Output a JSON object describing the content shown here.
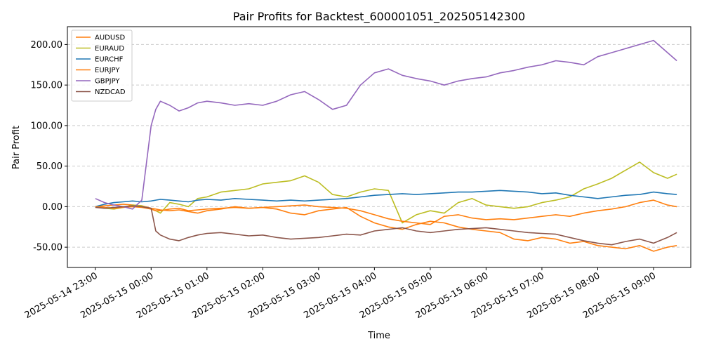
{
  "chart_data": {
    "type": "line",
    "title": "Pair Profits for Backtest_600001051_202505142300",
    "xlabel": "Time",
    "ylabel": "Pair Profit",
    "x_ticks": [
      "2025-05-14 23:00",
      "2025-05-15 00:00",
      "2025-05-15 01:00",
      "2025-05-15 02:00",
      "2025-05-15 03:00",
      "2025-05-15 04:00",
      "2025-05-15 05:00",
      "2025-05-15 06:00",
      "2025-05-15 07:00",
      "2025-05-15 08:00",
      "2025-05-15 09:00"
    ],
    "x_range": [
      "2025-05-14 22:30",
      "2025-05-15 09:40"
    ],
    "y_ticks": [
      "-50.00",
      "0.00",
      "50.00",
      "100.00",
      "150.00",
      "200.00"
    ],
    "ylim": [
      -75,
      222
    ],
    "grid": "y-dashed",
    "legend_position": "top-left",
    "x": [
      "2025-05-14 23:00",
      "2025-05-14 23:10",
      "2025-05-14 23:20",
      "2025-05-14 23:30",
      "2025-05-14 23:40",
      "2025-05-14 23:50",
      "2025-05-15 00:00",
      "2025-05-15 00:05",
      "2025-05-15 00:10",
      "2025-05-15 00:20",
      "2025-05-15 00:30",
      "2025-05-15 00:40",
      "2025-05-15 00:50",
      "2025-05-15 01:00",
      "2025-05-15 01:15",
      "2025-05-15 01:30",
      "2025-05-15 01:45",
      "2025-05-15 02:00",
      "2025-05-15 02:15",
      "2025-05-15 02:30",
      "2025-05-15 02:45",
      "2025-05-15 03:00",
      "2025-05-15 03:15",
      "2025-05-15 03:30",
      "2025-05-15 03:45",
      "2025-05-15 04:00",
      "2025-05-15 04:15",
      "2025-05-15 04:30",
      "2025-05-15 04:45",
      "2025-05-15 05:00",
      "2025-05-15 05:15",
      "2025-05-15 05:30",
      "2025-05-15 05:45",
      "2025-05-15 06:00",
      "2025-05-15 06:15",
      "2025-05-15 06:30",
      "2025-05-15 06:45",
      "2025-05-15 07:00",
      "2025-05-15 07:15",
      "2025-05-15 07:30",
      "2025-05-15 07:45",
      "2025-05-15 08:00",
      "2025-05-15 08:15",
      "2025-05-15 08:30",
      "2025-05-15 08:45",
      "2025-05-15 09:00",
      "2025-05-15 09:15",
      "2025-05-15 09:25"
    ],
    "series": [
      {
        "name": "AUDUSD",
        "color": "#ff7f0e",
        "values": [
          0,
          1,
          2,
          3,
          2,
          1,
          -2,
          -3,
          -4,
          -5,
          -4,
          -6,
          -8,
          -5,
          -3,
          0,
          -2,
          -1,
          -3,
          -8,
          -10,
          -5,
          -3,
          -1,
          -12,
          -20,
          -25,
          -28,
          -22,
          -18,
          -20,
          -25,
          -28,
          -30,
          -32,
          -40,
          -42,
          -38,
          -40,
          -45,
          -43,
          -48,
          -50,
          -52,
          -48,
          -55,
          -50,
          -48
        ]
      },
      {
        "name": "EURAUD",
        "color": "#bcbd22",
        "values": [
          0,
          -2,
          -3,
          -1,
          2,
          1,
          -3,
          -5,
          -8,
          5,
          3,
          0,
          10,
          12,
          18,
          20,
          22,
          28,
          30,
          32,
          38,
          30,
          15,
          12,
          18,
          22,
          20,
          -20,
          -10,
          -5,
          -8,
          5,
          10,
          2,
          0,
          -2,
          0,
          5,
          8,
          12,
          22,
          28,
          35,
          45,
          55,
          42,
          35,
          40
        ]
      },
      {
        "name": "EURCHF",
        "color": "#1f77b4",
        "values": [
          0,
          3,
          5,
          6,
          7,
          6,
          7,
          8,
          9,
          8,
          7,
          6,
          8,
          9,
          8,
          10,
          9,
          8,
          7,
          8,
          7,
          8,
          9,
          10,
          12,
          14,
          15,
          16,
          15,
          16,
          17,
          18,
          18,
          19,
          20,
          19,
          18,
          16,
          17,
          14,
          12,
          10,
          12,
          14,
          15,
          18,
          16,
          15
        ]
      },
      {
        "name": "EURJPY",
        "color": "#ff7f0e",
        "values": [
          0,
          -1,
          -2,
          -1,
          0,
          -1,
          -3,
          -5,
          -5,
          -3,
          -2,
          -5,
          -4,
          -3,
          -2,
          -1,
          -2,
          -1,
          0,
          1,
          2,
          0,
          -1,
          -2,
          -5,
          -10,
          -15,
          -18,
          -20,
          -22,
          -12,
          -10,
          -14,
          -16,
          -15,
          -16,
          -14,
          -12,
          -10,
          -12,
          -8,
          -5,
          -3,
          0,
          5,
          8,
          2,
          0
        ]
      },
      {
        "name": "GBPJPY",
        "color": "#9467bd",
        "values": [
          10,
          5,
          2,
          0,
          -3,
          8,
          100,
          120,
          130,
          125,
          118,
          122,
          128,
          130,
          128,
          125,
          127,
          125,
          130,
          138,
          142,
          132,
          120,
          125,
          150,
          165,
          170,
          162,
          158,
          155,
          150,
          155,
          158,
          160,
          165,
          168,
          172,
          175,
          180,
          178,
          175,
          185,
          190,
          195,
          200,
          205,
          190,
          180
        ]
      },
      {
        "name": "NZDCAD",
        "color": "#8c564b",
        "values": [
          -1,
          -2,
          -1,
          0,
          1,
          0,
          -2,
          -30,
          -35,
          -40,
          -42,
          -38,
          -35,
          -33,
          -32,
          -34,
          -36,
          -35,
          -38,
          -40,
          -39,
          -38,
          -36,
          -34,
          -35,
          -30,
          -28,
          -26,
          -30,
          -32,
          -30,
          -28,
          -27,
          -26,
          -28,
          -30,
          -32,
          -33,
          -34,
          -38,
          -42,
          -45,
          -47,
          -43,
          -40,
          -45,
          -38,
          -32
        ]
      }
    ]
  }
}
